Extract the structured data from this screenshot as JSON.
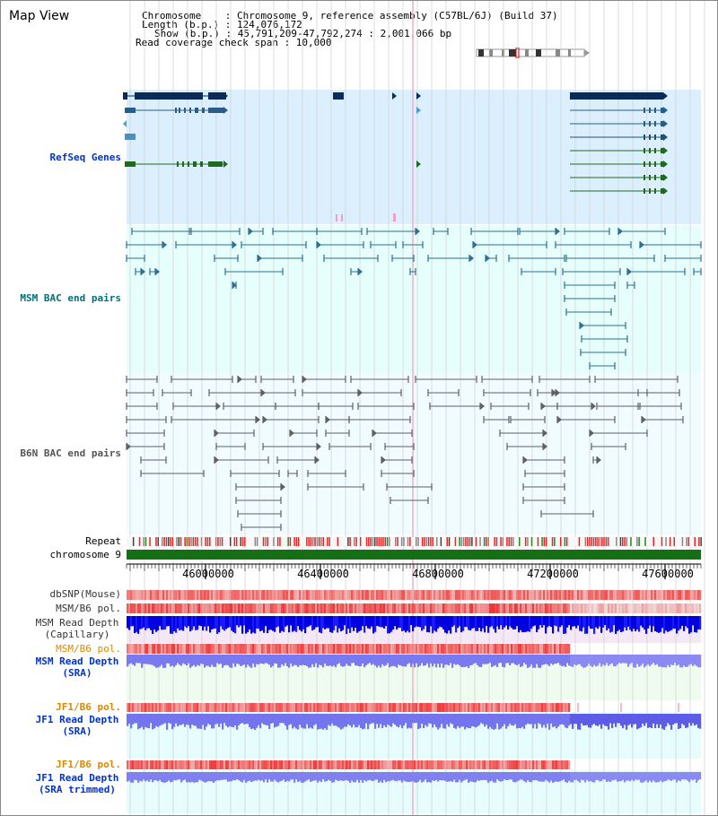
{
  "header": {
    "title": "Map View",
    "info_lines": [
      "Chromosome    : Chromosome 9, reference assembly (C57BL/6J) (Build 37)",
      "Length (b.p.) : 124,076,172",
      "Show (b.p.) : 45,791,209-47,792,274 : 2,001,066 bp",
      "Read coverage check span : 10,000"
    ]
  },
  "tracks": {
    "refseq": "RefSeq Genes",
    "msm_bac": "MSM BAC end pairs",
    "b6n_bac": "B6N BAC end pairs",
    "repeat": "Repeat",
    "chromosome": "chromosome 9",
    "dbsnp": "dbSNP(Mouse)",
    "msm_b6_pol_1": "MSM/B6 pol.",
    "msm_read_depth_cap": [
      "MSM Read Depth",
      "(Capillary)"
    ],
    "msm_b6_pol_2": "MSM/B6 pol.",
    "msm_read_depth_sra": [
      "MSM Read Depth",
      "(SRA)"
    ],
    "jf1_b6_pol_1": "JF1/B6 pol.",
    "jf1_read_depth_sra": [
      "JF1 Read Depth",
      "(SRA)"
    ],
    "jf1_b6_pol_2": "JF1/B6 pol.",
    "jf1_read_depth_trim": [
      "JF1 Read Depth",
      "(SRA trimmed)"
    ]
  },
  "axis": {
    "ticks": [
      "46000000",
      "46400000",
      "46800000",
      "47200000",
      "47600000"
    ]
  },
  "colors": {
    "refseq_bg": "#dcefff",
    "msm_bac_bg": "#e6fffd",
    "b6n_bac_bg": "#f0fcff",
    "gene_dark": "#0a2a5a",
    "gene_green": "#1f6a1f",
    "bac_line": "#2f6f8f",
    "b6n_line": "#606060",
    "chrom_green": "#157015",
    "depth_blue": "#0000e0",
    "depth_light": "#7777ee",
    "pol_red": "#ee3333",
    "label_blue": "#0033cc",
    "label_orange": "#dd8800"
  }
}
